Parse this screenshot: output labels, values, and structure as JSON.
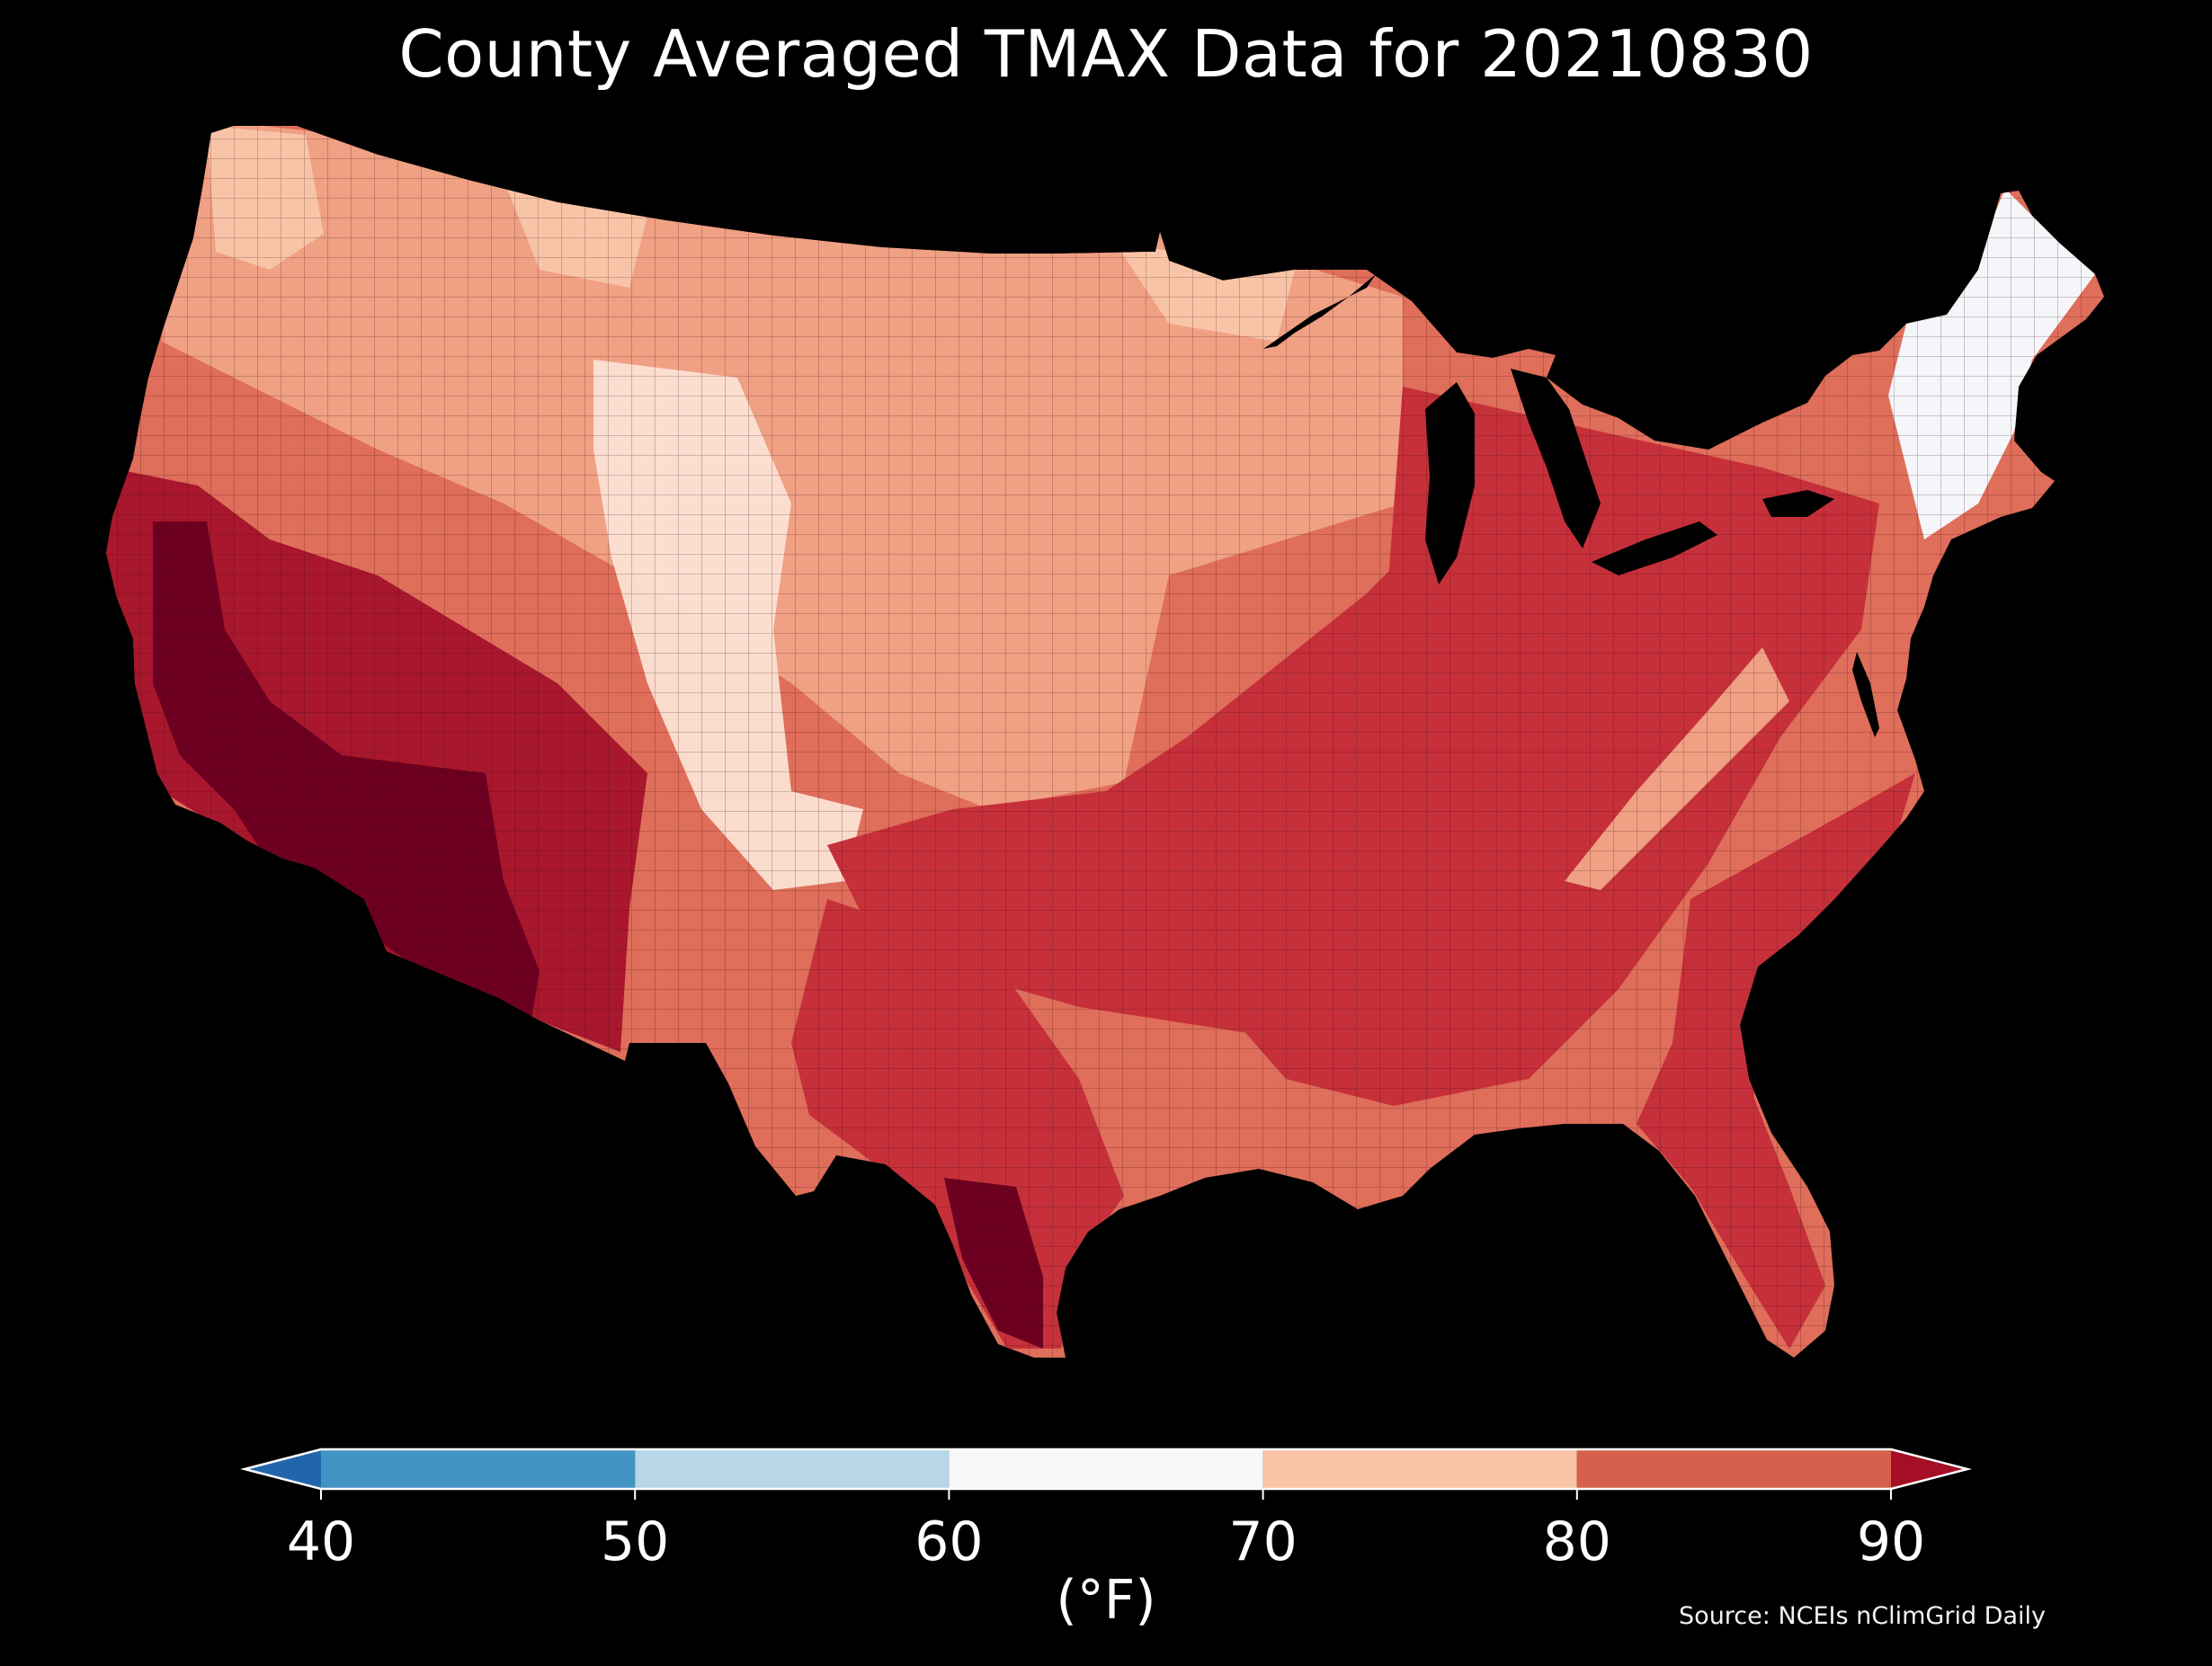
{
  "title": "County Averaged TMAX Data for 20210830",
  "colorbar": {
    "ticks": [
      "40",
      "50",
      "60",
      "70",
      "80",
      "90"
    ],
    "units": "(°F)",
    "bins": [
      {
        "min": 40,
        "max": 50,
        "color": "#4393c3"
      },
      {
        "min": 50,
        "max": 60,
        "color": "#b7d7e8"
      },
      {
        "min": 60,
        "max": 70,
        "color": "#f7f7f7"
      },
      {
        "min": 70,
        "max": 80,
        "color": "#f9c3a6"
      },
      {
        "min": 80,
        "max": 90,
        "color": "#d6604d"
      }
    ],
    "under_color": "#2166ac",
    "over_color": "#a50f25"
  },
  "source": "Source: NCEIs nClimGrid Daily",
  "map": {
    "region": "contiguous United States (counties)",
    "variable": "TMAX",
    "background": "#000000",
    "palette": {
      "coolest": "#f4f6f9",
      "light": "#fbe2d4",
      "pale": "#f8c4a8",
      "mid": "#f0a083",
      "warm": "#df6e5a",
      "hot": "#c6303a",
      "hotter": "#a8172d",
      "hottest": "#6d0020"
    }
  }
}
